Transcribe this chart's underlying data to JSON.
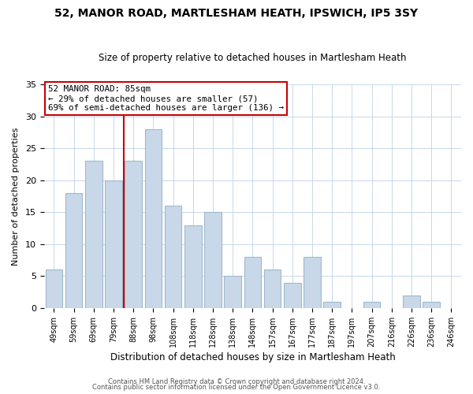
{
  "title": "52, MANOR ROAD, MARTLESHAM HEATH, IPSWICH, IP5 3SY",
  "subtitle": "Size of property relative to detached houses in Martlesham Heath",
  "xlabel": "Distribution of detached houses by size in Martlesham Heath",
  "ylabel": "Number of detached properties",
  "bar_labels": [
    "49sqm",
    "59sqm",
    "69sqm",
    "79sqm",
    "88sqm",
    "98sqm",
    "108sqm",
    "118sqm",
    "128sqm",
    "138sqm",
    "148sqm",
    "157sqm",
    "167sqm",
    "177sqm",
    "187sqm",
    "197sqm",
    "207sqm",
    "216sqm",
    "226sqm",
    "236sqm",
    "246sqm"
  ],
  "bar_values": [
    6,
    18,
    23,
    20,
    23,
    28,
    16,
    13,
    15,
    5,
    8,
    6,
    4,
    8,
    1,
    0,
    1,
    0,
    2,
    1,
    0
  ],
  "bar_color": "#c8d8e8",
  "bar_edge_color": "#a0b8cc",
  "highlight_line_index": 4,
  "highlight_line_color": "#cc0000",
  "ylim": [
    0,
    35
  ],
  "yticks": [
    0,
    5,
    10,
    15,
    20,
    25,
    30,
    35
  ],
  "annotation_title": "52 MANOR ROAD: 85sqm",
  "annotation_line1": "← 29% of detached houses are smaller (57)",
  "annotation_line2": "69% of semi-detached houses are larger (136) →",
  "annotation_box_color": "#ffffff",
  "annotation_box_edge": "#cc0000",
  "footer1": "Contains HM Land Registry data © Crown copyright and database right 2024.",
  "footer2": "Contains public sector information licensed under the Open Government Licence v3.0."
}
